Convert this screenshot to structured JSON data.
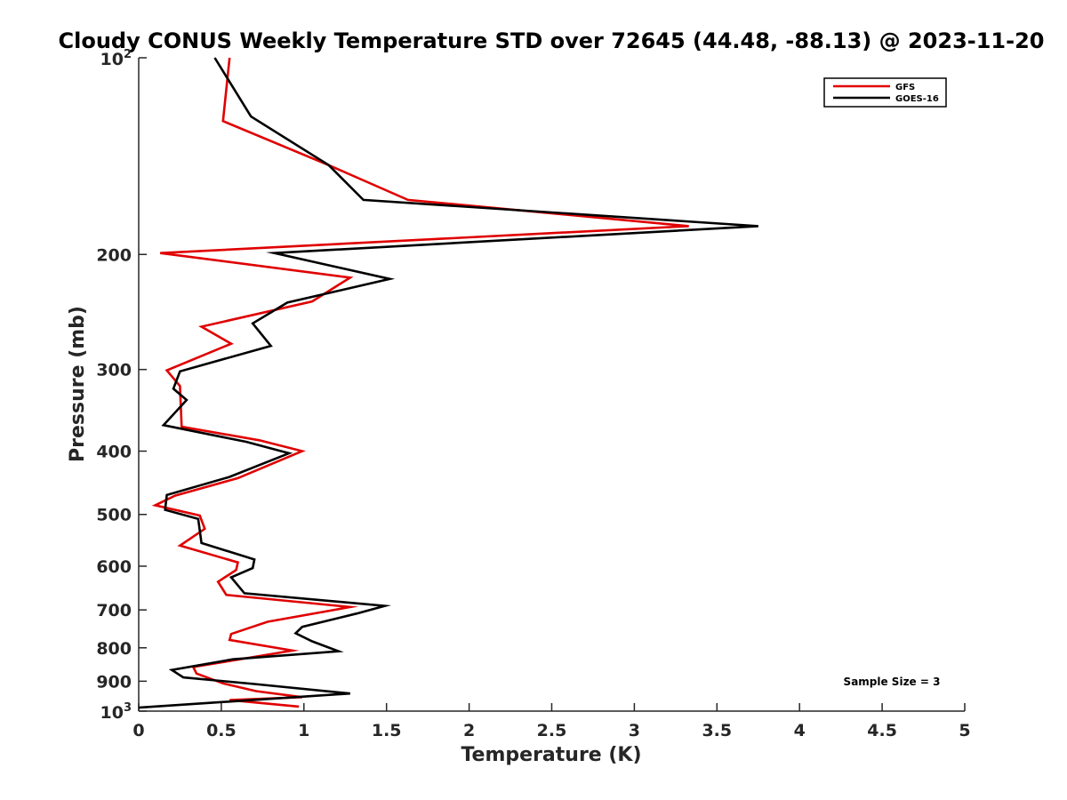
{
  "chart_data": {
    "type": "line",
    "title": "Cloudy CONUS Weekly Temperature STD over 72645 (44.48, -88.13) @ 2023-11-20",
    "xlabel": "Temperature (K)",
    "ylabel": "Pressure (mb)",
    "xlim": [
      0,
      5
    ],
    "ylim": [
      100,
      1000
    ],
    "y_scale": "log",
    "y_reversed": true,
    "grid": false,
    "legend_position": "top-right",
    "x_ticks": [
      0,
      0.5,
      1,
      1.5,
      2,
      2.5,
      3,
      3.5,
      4,
      4.5,
      5
    ],
    "x_tick_labels": [
      "0",
      "0.5",
      "1",
      "1.5",
      "2",
      "2.5",
      "3",
      "3.5",
      "4",
      "4.5",
      "5"
    ],
    "y_ticks": [
      {
        "value": 100,
        "base": "10",
        "exp": "2"
      },
      {
        "value": 200,
        "label": "200"
      },
      {
        "value": 300,
        "label": "300"
      },
      {
        "value": 400,
        "label": "400"
      },
      {
        "value": 500,
        "label": "500"
      },
      {
        "value": 600,
        "label": "600"
      },
      {
        "value": 700,
        "label": "700"
      },
      {
        "value": 800,
        "label": "800"
      },
      {
        "value": 900,
        "label": "900"
      },
      {
        "value": 1000,
        "base": "10",
        "exp": "3"
      }
    ],
    "series": [
      {
        "name": "GFS",
        "color": "#e00000",
        "points": [
          [
            0.55,
            100
          ],
          [
            0.51,
            125
          ],
          [
            1.15,
            146
          ],
          [
            1.63,
            165
          ],
          [
            3.33,
            181
          ],
          [
            0.13,
            199
          ],
          [
            1.28,
            217
          ],
          [
            1.05,
            236
          ],
          [
            0.38,
            258
          ],
          [
            0.56,
            274
          ],
          [
            0.17,
            301
          ],
          [
            0.25,
            318
          ],
          [
            0.26,
            367
          ],
          [
            0.73,
            385
          ],
          [
            0.99,
            400
          ],
          [
            0.6,
            440
          ],
          [
            0.22,
            468
          ],
          [
            0.1,
            484
          ],
          [
            0.37,
            502
          ],
          [
            0.4,
            526
          ],
          [
            0.25,
            558
          ],
          [
            0.6,
            592
          ],
          [
            0.59,
            608
          ],
          [
            0.48,
            634
          ],
          [
            0.53,
            664
          ],
          [
            1.28,
            693
          ],
          [
            0.78,
            730
          ],
          [
            0.56,
            762
          ],
          [
            0.55,
            778
          ],
          [
            0.93,
            808
          ],
          [
            0.33,
            856
          ],
          [
            0.35,
            876
          ],
          [
            0.51,
            907
          ],
          [
            0.71,
            932
          ],
          [
            0.99,
            952
          ],
          [
            0.55,
            962
          ],
          [
            0.97,
            984
          ]
        ]
      },
      {
        "name": "GOES-16",
        "color": "#000000",
        "points": [
          [
            0.46,
            100
          ],
          [
            0.68,
            123
          ],
          [
            1.15,
            146
          ],
          [
            1.36,
            165
          ],
          [
            3.75,
            181
          ],
          [
            0.82,
            199
          ],
          [
            1.52,
            218
          ],
          [
            0.9,
            237
          ],
          [
            0.69,
            255
          ],
          [
            0.8,
            276
          ],
          [
            0.25,
            302
          ],
          [
            0.21,
            321
          ],
          [
            0.29,
            334
          ],
          [
            0.15,
            365
          ],
          [
            0.65,
            387
          ],
          [
            0.91,
            403
          ],
          [
            0.55,
            438
          ],
          [
            0.17,
            467
          ],
          [
            0.16,
            492
          ],
          [
            0.36,
            508
          ],
          [
            0.38,
            553
          ],
          [
            0.7,
            586
          ],
          [
            0.69,
            604
          ],
          [
            0.56,
            624
          ],
          [
            0.64,
            660
          ],
          [
            1.49,
            690
          ],
          [
            1.32,
            709
          ],
          [
            0.99,
            743
          ],
          [
            0.95,
            760
          ],
          [
            1.05,
            782
          ],
          [
            1.21,
            810
          ],
          [
            0.57,
            833
          ],
          [
            0.2,
            865
          ],
          [
            0.27,
            888
          ],
          [
            0.7,
            909
          ],
          [
            1.28,
            940
          ],
          [
            0.0,
            988
          ]
        ]
      }
    ],
    "legend": [
      "GFS",
      "GOES-16"
    ],
    "annotation": "Sample Size = 3"
  }
}
